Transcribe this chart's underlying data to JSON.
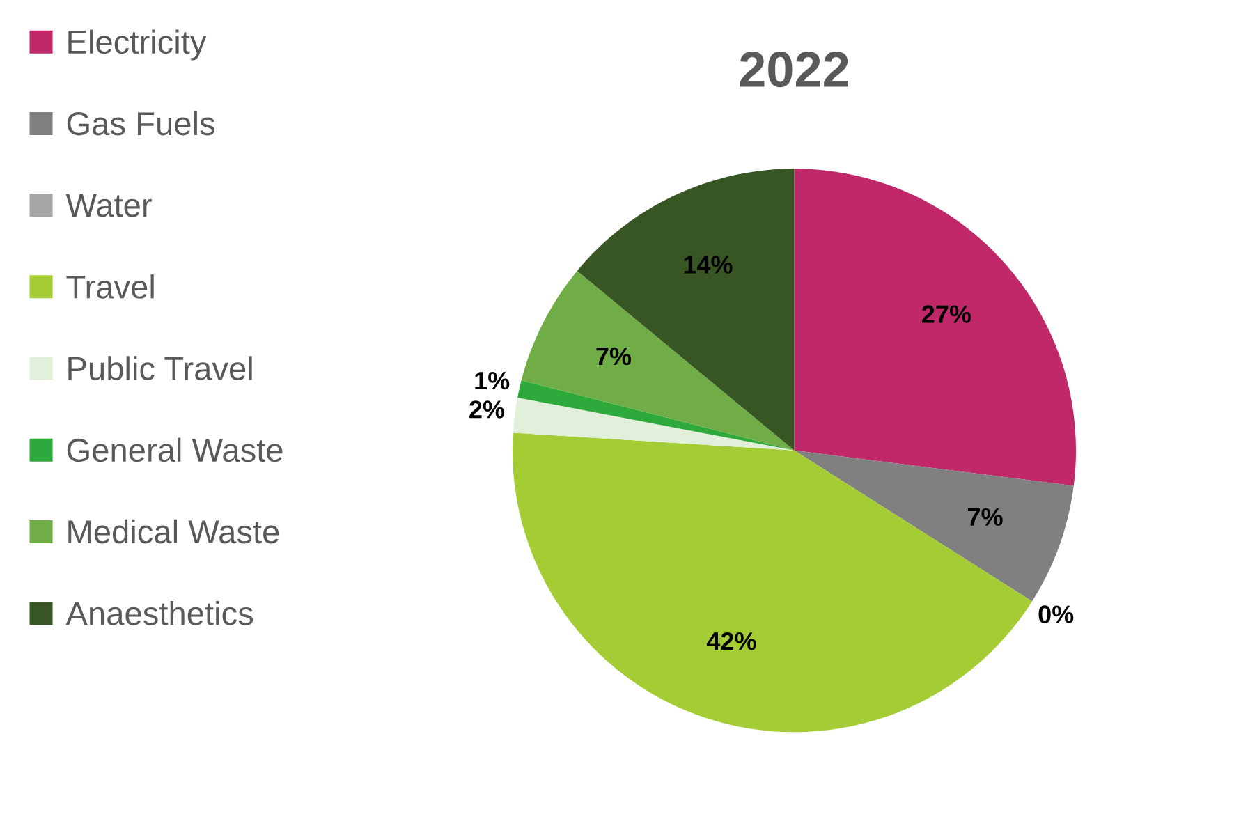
{
  "chart_data": {
    "type": "pie",
    "title": "2022",
    "categories": [
      "Electricity",
      "Gas Fuels",
      "Water",
      "Travel",
      "Public Travel",
      "General Waste",
      "Medical Waste",
      "Anaesthetics"
    ],
    "values": [
      27,
      7,
      0,
      42,
      2,
      1,
      7,
      14
    ],
    "colors": [
      "#c0286a",
      "#808080",
      "#a6a6a6",
      "#a4cc34",
      "#e2efda",
      "#2eaa3c",
      "#70ad47",
      "#375623"
    ],
    "value_labels": [
      "27%",
      "7%",
      "0%",
      "42%",
      "2%",
      "1%",
      "7%",
      "14%"
    ],
    "legend": "left"
  }
}
